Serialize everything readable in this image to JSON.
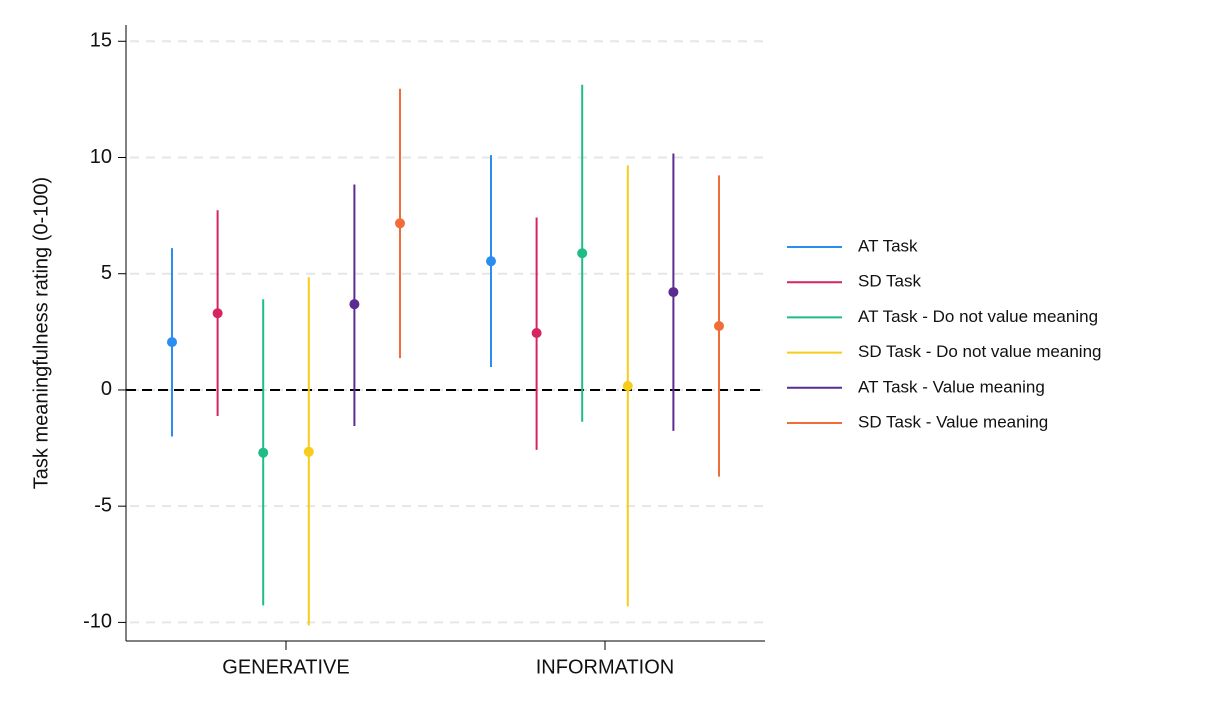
{
  "chart_data": {
    "type": "errorbar",
    "y_label": "Task meaningfulness rating (0-100)",
    "categories": [
      "GENERATIVE",
      "INFORMATION"
    ],
    "ylim": [
      -10.8,
      15.7
    ],
    "yticks": [
      15,
      10,
      5,
      0,
      -5,
      -10
    ],
    "grid": true,
    "hline": 0,
    "legend": "right",
    "series": [
      {
        "name": "AT Task",
        "color": "#2a8ef0",
        "values": [
          2.06,
          5.54
        ],
        "lower": [
          -2.0,
          0.99
        ],
        "upper": [
          6.1,
          10.1
        ]
      },
      {
        "name": "SD Task",
        "color": "#d6245e",
        "values": [
          3.3,
          2.45
        ],
        "lower": [
          -1.12,
          -2.58
        ],
        "upper": [
          7.73,
          7.42
        ]
      },
      {
        "name": "AT Task - Do not value meaning",
        "color": "#1fbd85",
        "values": [
          -2.7,
          5.88
        ],
        "lower": [
          -9.27,
          -1.37
        ],
        "upper": [
          3.9,
          13.13
        ]
      },
      {
        "name": "SD Task - Do not value meaning",
        "color": "#f7cc1a",
        "values": [
          -2.66,
          0.17
        ],
        "lower": [
          -10.13,
          -9.31
        ],
        "upper": [
          4.85,
          9.66
        ]
      },
      {
        "name": "AT Task - Value meaning",
        "color": "#5b2c91",
        "values": [
          3.69,
          4.21
        ],
        "lower": [
          -1.55,
          -1.76
        ],
        "upper": [
          8.84,
          10.17
        ]
      },
      {
        "name": "SD Task - Value meaning",
        "color": "#f26c3a",
        "values": [
          7.17,
          2.75
        ],
        "lower": [
          1.37,
          -3.73
        ],
        "upper": [
          12.96,
          9.23
        ]
      }
    ]
  }
}
